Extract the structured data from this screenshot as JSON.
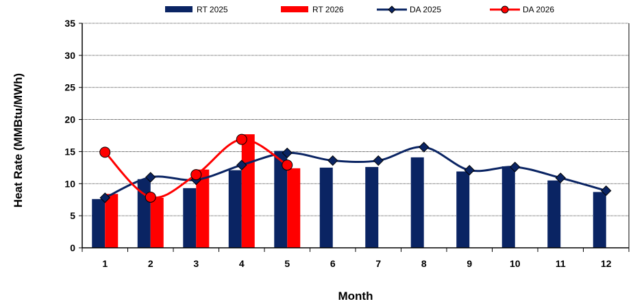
{
  "chart_data": {
    "type": "bar",
    "categories": [
      "1",
      "2",
      "3",
      "4",
      "5",
      "6",
      "7",
      "8",
      "9",
      "10",
      "11",
      "12"
    ],
    "xlabel": "Month",
    "ylabel": "Heat Rate (MMBtu/MWh)",
    "ylim": [
      0,
      35
    ],
    "yticks": [
      0,
      5,
      10,
      15,
      20,
      25,
      30,
      35
    ],
    "grid": true,
    "legend_position": "top",
    "series": [
      {
        "name": "RT 2025",
        "kind": "bar",
        "color": "#0a2463",
        "values": [
          7.6,
          10.7,
          9.3,
          12.1,
          15.1,
          12.5,
          12.6,
          14.1,
          11.9,
          12.7,
          10.5,
          8.7
        ]
      },
      {
        "name": "RT 2026",
        "kind": "bar",
        "color": "#ff0000",
        "values": [
          8.4,
          7.8,
          12.2,
          17.7,
          12.4,
          null,
          null,
          null,
          null,
          null,
          null,
          null
        ]
      },
      {
        "name": "DA 2025",
        "kind": "line",
        "marker": "diamond",
        "color": "#0a2463",
        "values": [
          7.8,
          11.0,
          10.6,
          12.9,
          14.8,
          13.6,
          13.6,
          15.7,
          12.1,
          12.6,
          10.9,
          8.9
        ]
      },
      {
        "name": "DA 2026",
        "kind": "line",
        "marker": "circle",
        "color": "#ff0000",
        "values": [
          14.9,
          7.9,
          11.4,
          16.9,
          12.9,
          null,
          null,
          null,
          null,
          null,
          null,
          null
        ]
      }
    ]
  }
}
